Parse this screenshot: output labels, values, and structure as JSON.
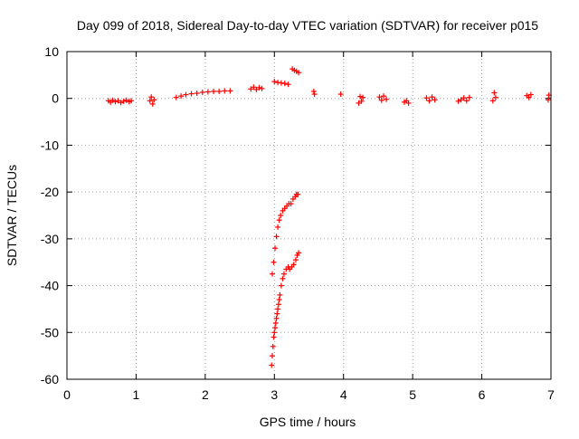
{
  "chart_data": {
    "type": "scatter",
    "title": "Day 099 of 2018, Sidereal Day-to-day VTEC variation (SDTVAR) for receiver p015",
    "xlabel": "GPS time / hours",
    "ylabel": "SDTVAR / TECUs",
    "xlim": [
      0,
      7
    ],
    "ylim": [
      -60,
      10
    ],
    "xticks": [
      "0",
      "1",
      "2",
      "3",
      "4",
      "5",
      "6",
      "7"
    ],
    "yticks": [
      "10",
      "0",
      "-10",
      "-20",
      "-30",
      "-40",
      "-50",
      "-60"
    ],
    "grid": true,
    "marker": "+",
    "colors": {
      "series": "#ff0000",
      "grid": "#a0a0a0",
      "axes": "#000000"
    },
    "series": [
      {
        "x": [
          0.6,
          0.63,
          0.66,
          0.7,
          0.74,
          0.78,
          0.82,
          0.86,
          0.9,
          0.93,
          1.2,
          1.22,
          1.24,
          1.26,
          1.58,
          1.65,
          1.72,
          1.8,
          1.88,
          1.96,
          2.04,
          2.12,
          2.2,
          2.28,
          2.36,
          2.66,
          2.7,
          2.74,
          2.78,
          2.82,
          3.0,
          3.05,
          3.1,
          3.15,
          3.2,
          3.26,
          3.29,
          3.32,
          3.35,
          3.57,
          3.58,
          3.96,
          4.22,
          4.24,
          4.26,
          4.28,
          4.52,
          4.55,
          4.58,
          4.62,
          4.88,
          4.91,
          4.94,
          5.2,
          5.24,
          5.28,
          5.32,
          5.66,
          5.7,
          5.74,
          5.78,
          5.82,
          6.16,
          6.18,
          6.2,
          6.65,
          6.68,
          6.71,
          6.96,
          6.97,
          2.97,
          2.99,
          3.01,
          3.03,
          3.05,
          3.07,
          3.09,
          3.12,
          3.15,
          3.18,
          3.21,
          3.24,
          3.27,
          3.3,
          3.32,
          3.34,
          2.96,
          2.97,
          2.98,
          2.99,
          3.0,
          3.01,
          3.02,
          3.03,
          3.04,
          3.05,
          3.06,
          3.07,
          3.08,
          3.1,
          3.12,
          3.14,
          3.17,
          3.2,
          3.22,
          3.25,
          3.28,
          3.31,
          3.33,
          3.35
        ],
        "y": [
          -0.5,
          -0.8,
          -0.4,
          -0.7,
          -0.5,
          -0.9,
          -0.6,
          -0.4,
          -0.7,
          -0.5,
          -0.5,
          0.3,
          -1.2,
          -0.3,
          0.2,
          0.5,
          0.8,
          1.0,
          1.1,
          1.3,
          1.4,
          1.5,
          1.5,
          1.6,
          1.6,
          2.0,
          2.4,
          1.9,
          2.3,
          2.1,
          3.6,
          3.4,
          3.3,
          3.2,
          3.0,
          6.3,
          6.0,
          5.8,
          5.5,
          1.5,
          0.9,
          0.9,
          -1.0,
          0.4,
          -0.6,
          0.2,
          0.3,
          -0.4,
          0.5,
          -0.2,
          -0.8,
          -0.5,
          -1.0,
          0.1,
          -0.5,
          0.3,
          -0.3,
          -0.6,
          -0.3,
          0.1,
          -0.5,
          0.2,
          -0.5,
          1.2,
          0.2,
          0.6,
          0.2,
          0.8,
          -0.3,
          0.7,
          -37.5,
          -35.0,
          -32.0,
          -29.5,
          -27.5,
          -26.0,
          -25.0,
          -24.0,
          -23.5,
          -23.0,
          -22.5,
          -22.5,
          -21.5,
          -21.0,
          -20.5,
          -20.5,
          -57.0,
          -55.0,
          -53.0,
          -51.0,
          -50.0,
          -49.0,
          -48.0,
          -47.0,
          -46.0,
          -45.0,
          -44.0,
          -43.0,
          -42.0,
          -40.0,
          -38.5,
          -37.5,
          -36.5,
          -36.0,
          -36.5,
          -36.0,
          -35.5,
          -34.5,
          -33.5,
          -33.0
        ]
      }
    ]
  }
}
